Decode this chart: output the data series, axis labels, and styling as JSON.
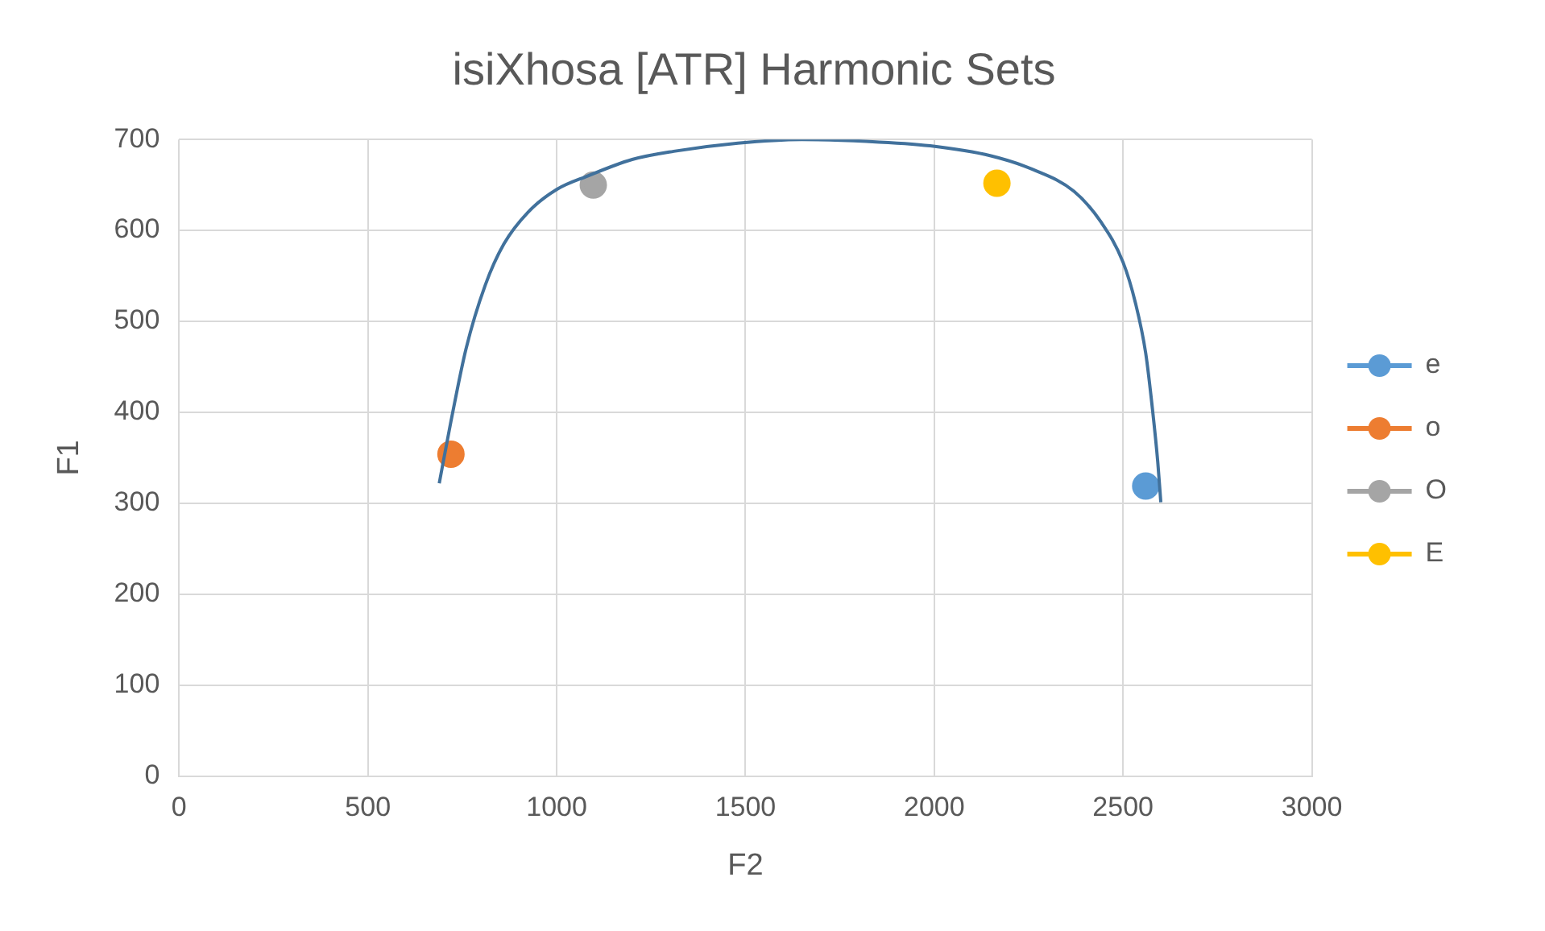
{
  "chart_data": {
    "type": "scatter",
    "title": "isiXhosa [ATR] Harmonic Sets",
    "xlabel": "F2",
    "ylabel": "F1",
    "xlim": [
      0,
      3000
    ],
    "xticks": [
      0,
      500,
      1000,
      1500,
      2000,
      2500,
      3000
    ],
    "ylim": [
      0,
      700
    ],
    "yticks": [
      0,
      100,
      200,
      300,
      400,
      500,
      600,
      700
    ],
    "grid": true,
    "legend": "right",
    "marker": "circle",
    "series": [
      {
        "type": "line",
        "marker": "none",
        "color": "#41719c",
        "x": [
          689,
          720,
          760,
          811,
          860,
          924,
          1000,
          1083,
          1200,
          1310,
          1480,
          1649,
          1820,
          1989,
          2150,
          2261,
          2370,
          2442,
          2500,
          2533,
          2560,
          2578,
          2592,
          2600
        ],
        "values": [
          322,
          390,
          470,
          540,
          585,
          620,
          645,
          660,
          678,
          687,
          696,
          700,
          698,
          693,
          682,
          667,
          643,
          609,
          565,
          520,
          465,
          403,
          345,
          301
        ]
      },
      {
        "name": "e",
        "color": "#5b9bd5",
        "x": [
          2560
        ],
        "values": [
          319
        ]
      },
      {
        "name": "o",
        "color": "#ed7d31",
        "x": [
          720
        ],
        "values": [
          354
        ]
      },
      {
        "name": "O",
        "color": "#a5a5a5",
        "x": [
          1097
        ],
        "values": [
          650
        ]
      },
      {
        "name": "E",
        "color": "#ffc000",
        "x": [
          2166
        ],
        "values": [
          652
        ]
      }
    ]
  }
}
